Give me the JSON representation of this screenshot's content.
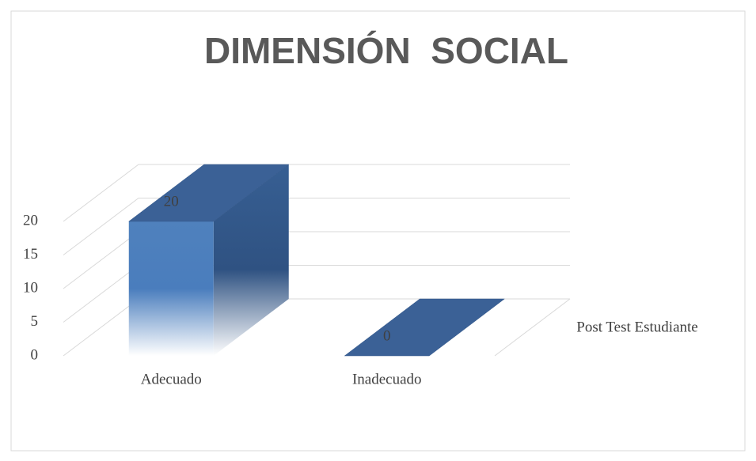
{
  "chart_data": {
    "type": "bar3d",
    "title": "DIMENSIÓN  SOCIAL",
    "categories": [
      "Adecuado",
      "Inadecuado"
    ],
    "series": [
      {
        "name": "Post Test Estudiante",
        "color": "#4f81bd",
        "values": [
          20,
          0
        ]
      }
    ],
    "ylim": [
      0,
      20
    ],
    "yticks": [
      0,
      5,
      10,
      15,
      20
    ],
    "grid": true
  }
}
